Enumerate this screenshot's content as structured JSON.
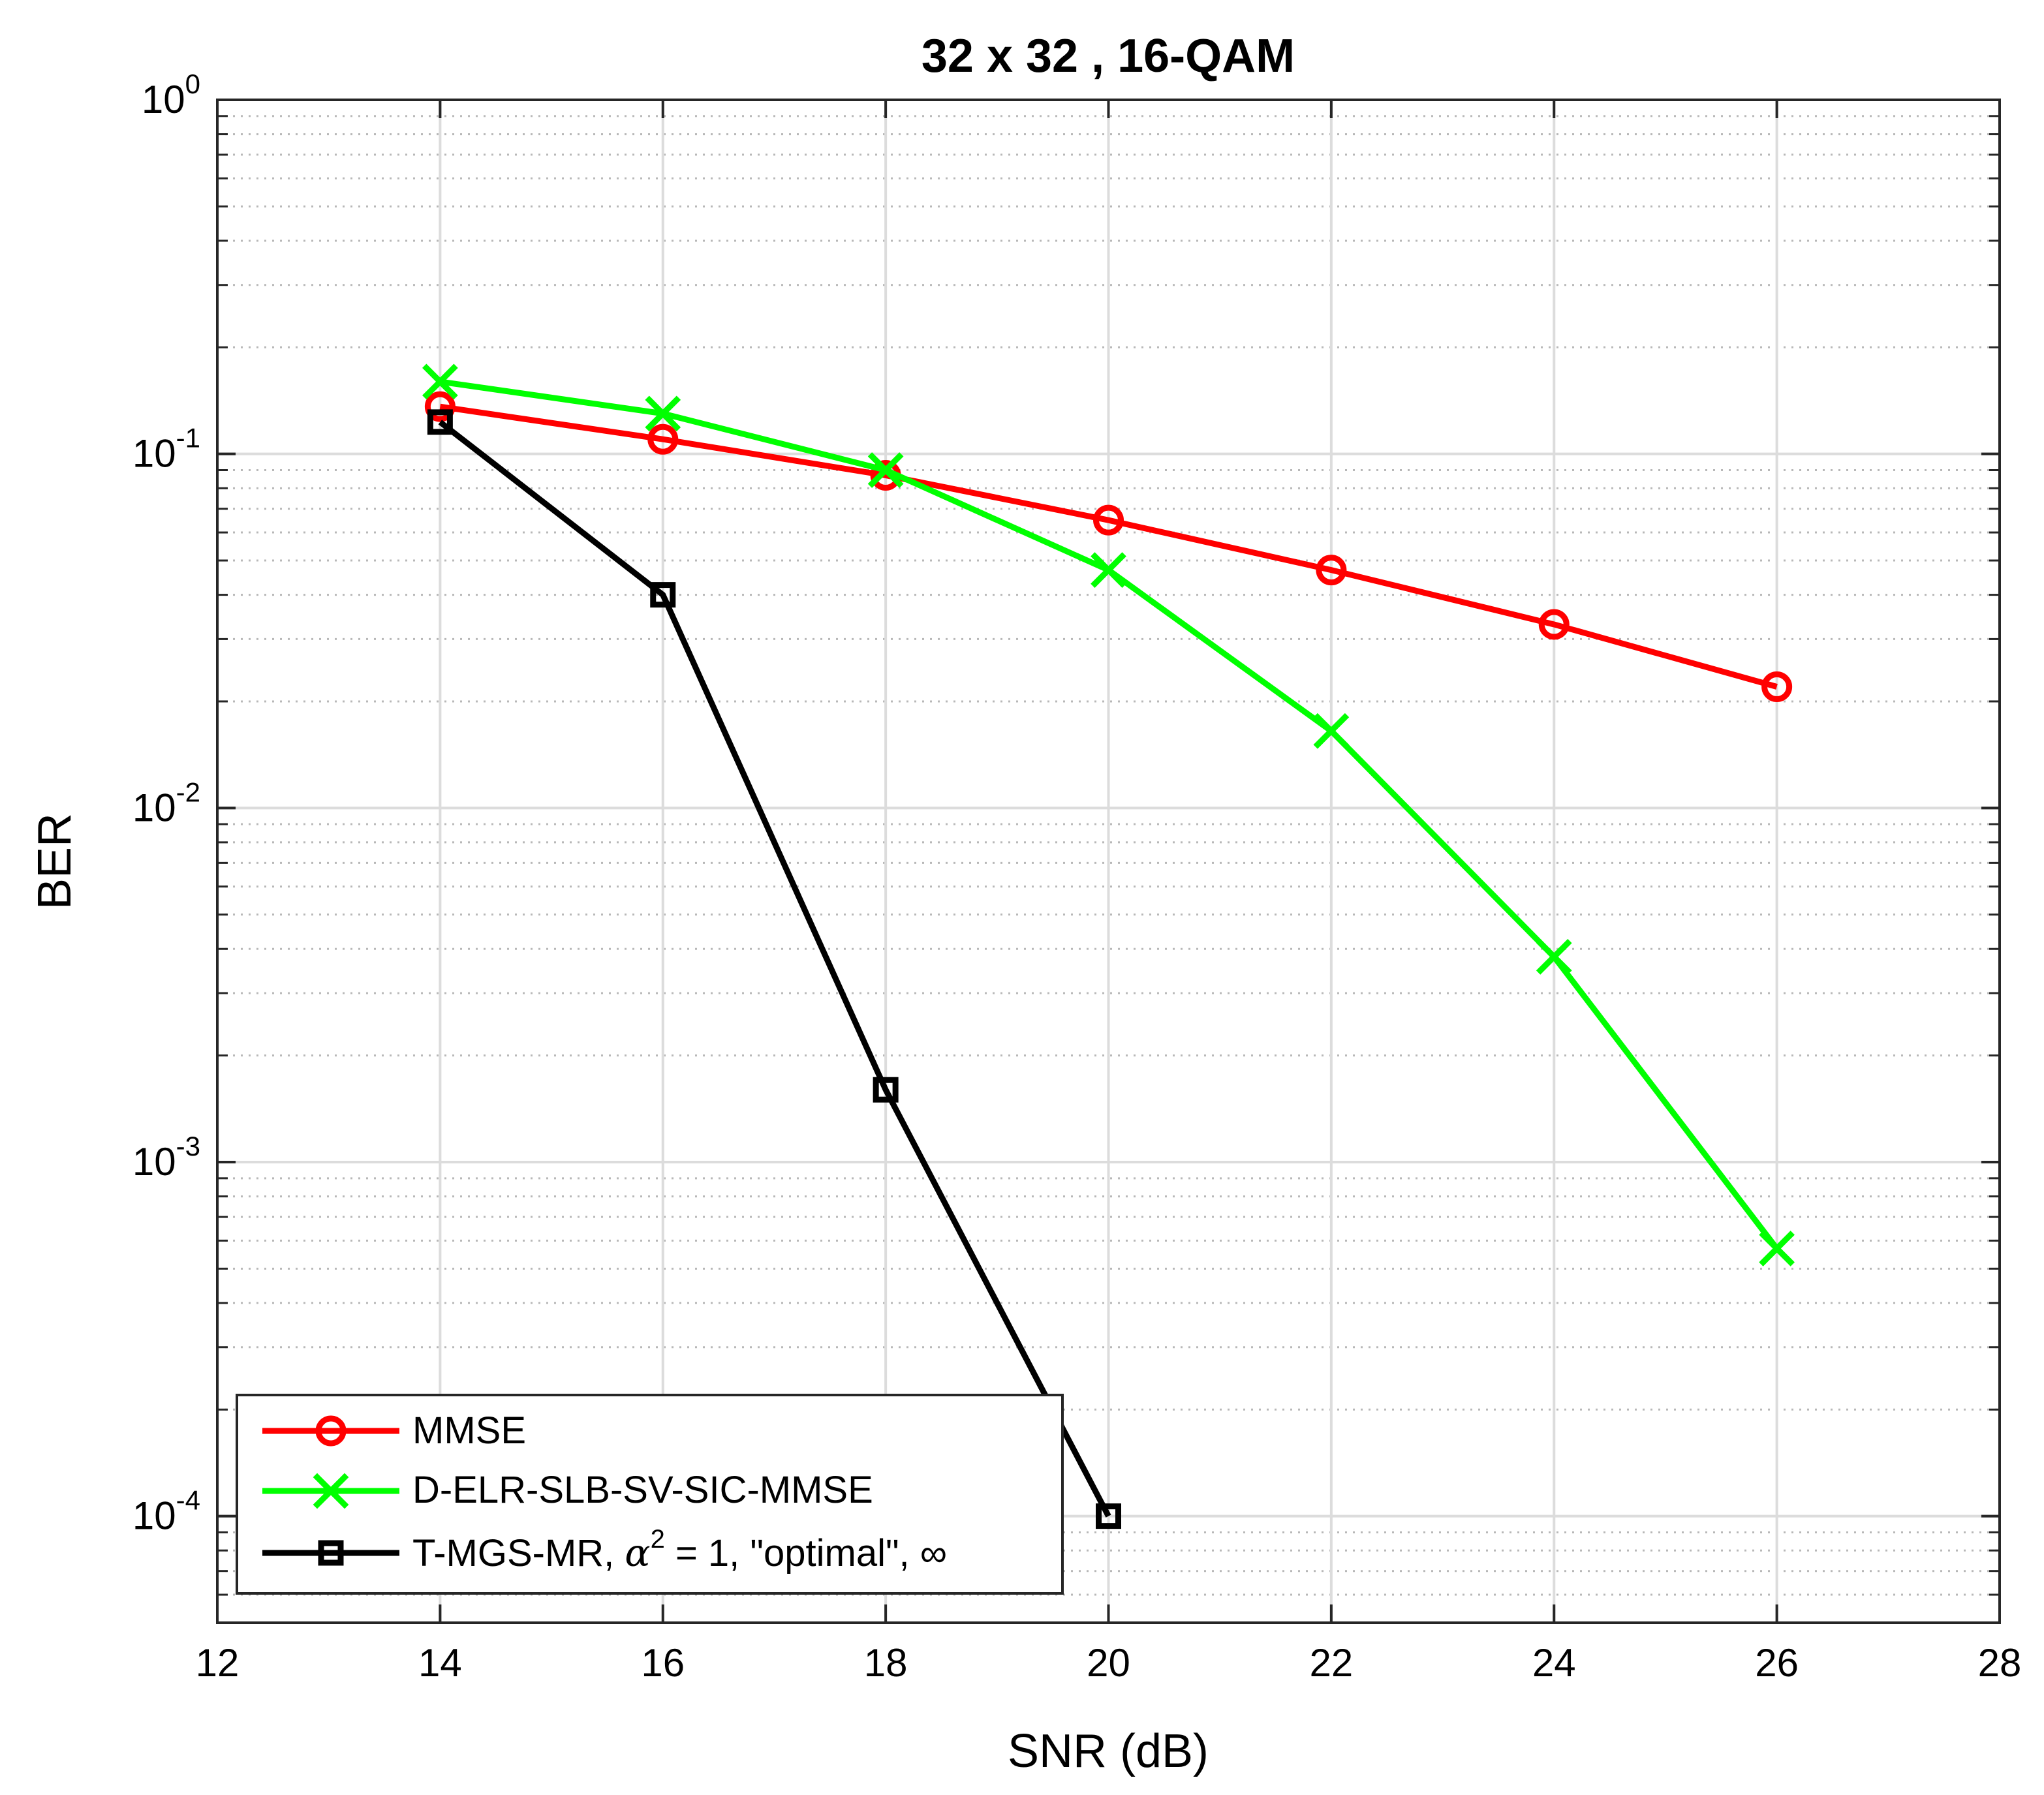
{
  "chart_data": {
    "type": "line",
    "title": "32 x 32 , 16-QAM",
    "xlabel": "SNR (dB)",
    "ylabel": "BER",
    "yscale": "log",
    "xlim": [
      12,
      28
    ],
    "ylim": [
      5e-05,
      1
    ],
    "grid": true,
    "x_ticks": [
      "12",
      "14",
      "16",
      "18",
      "20",
      "22",
      "24",
      "26",
      "28"
    ],
    "y_ticks": [
      {
        "base": "10",
        "exp": "0",
        "value": 1
      },
      {
        "base": "10",
        "exp": "-1",
        "value": 0.1
      },
      {
        "base": "10",
        "exp": "-2",
        "value": 0.01
      },
      {
        "base": "10",
        "exp": "-3",
        "value": 0.001
      },
      {
        "base": "10",
        "exp": "-4",
        "value": 0.0001
      }
    ],
    "legend_position": "bottom-left",
    "series": [
      {
        "name": "MMSE",
        "color": "#ff0000",
        "marker": "circle",
        "x": [
          14,
          16,
          18,
          20,
          22,
          24,
          26
        ],
        "y": [
          0.136,
          0.11,
          0.087,
          0.065,
          0.047,
          0.033,
          0.022
        ]
      },
      {
        "name": "D-ELR-SLB-SV-SIC-MMSE",
        "color": "#00ff00",
        "marker": "x",
        "x": [
          14,
          16,
          18,
          20,
          22,
          24,
          26
        ],
        "y": [
          0.16,
          0.13,
          0.09,
          0.047,
          0.0165,
          0.0038,
          0.00057
        ]
      },
      {
        "name": "T-MGS-MR, α² = 1, \"optimal\", ∞",
        "color": "#000000",
        "marker": "square",
        "x": [
          14,
          16,
          18,
          20
        ],
        "y": [
          0.123,
          0.04,
          0.0016,
          0.0001
        ]
      }
    ],
    "legend_entries": [
      {
        "text": "MMSE"
      },
      {
        "text": "D-ELR-SLB-SV-SIC-MMSE"
      },
      {
        "text_before": "T-MGS-MR, ",
        "symbol": "α",
        "sup": "2",
        "text_after": " = 1, \"optimal\", ∞"
      }
    ]
  }
}
